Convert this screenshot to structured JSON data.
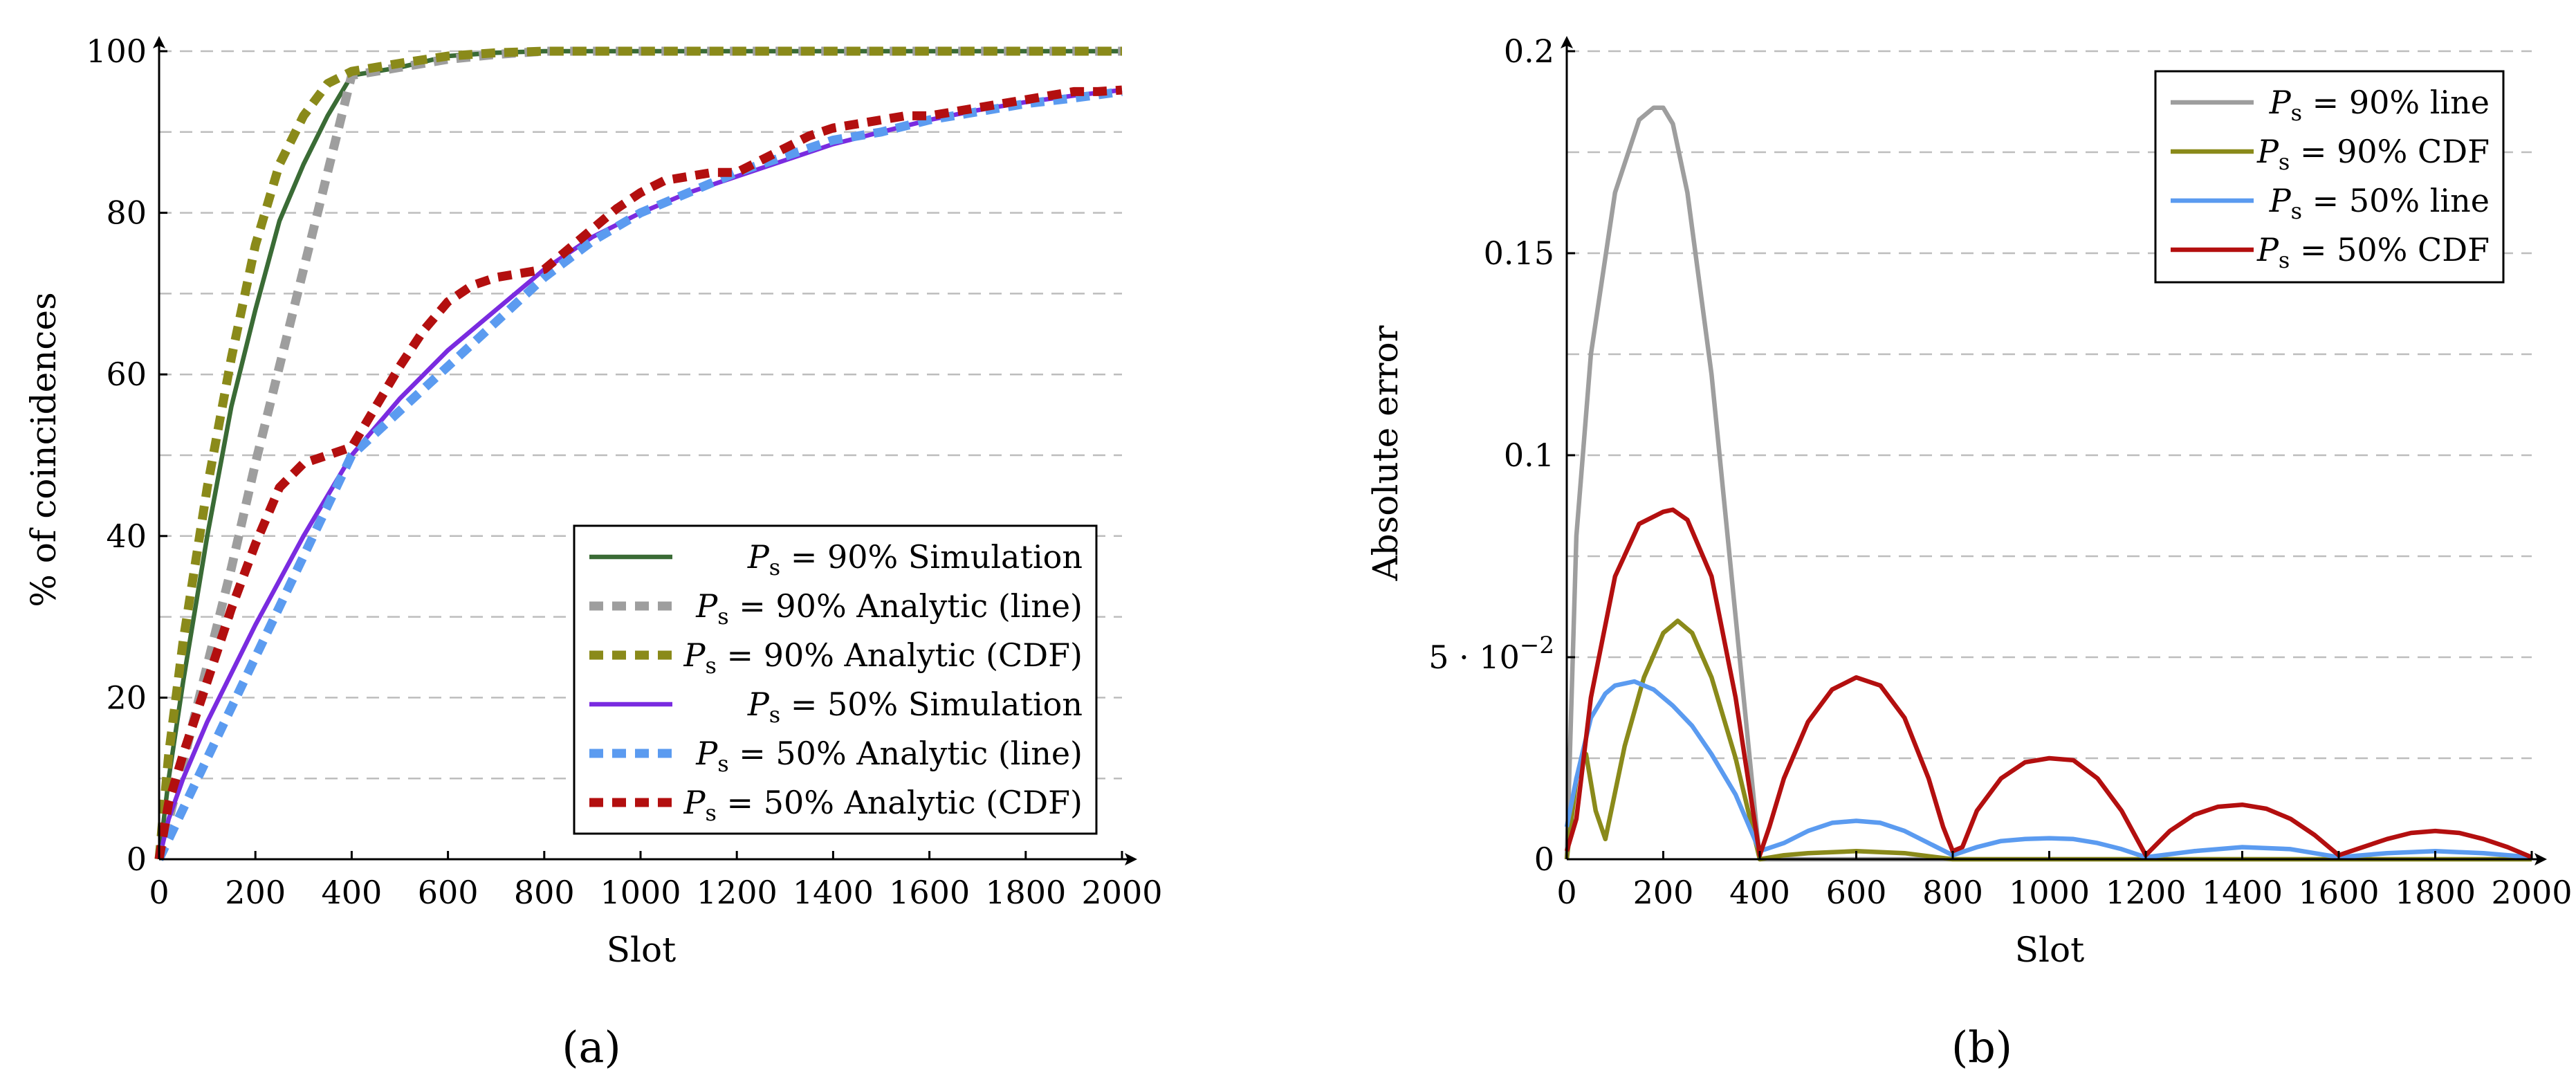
{
  "chart_data": [
    {
      "type": "line",
      "caption": "(a)",
      "xlabel": "Slot",
      "ylabel": "% of coincidences",
      "xlim": [
        0,
        2000
      ],
      "ylim": [
        0,
        100
      ],
      "xticks": [
        "0",
        "200",
        "400",
        "600",
        "800",
        "1000",
        "1200",
        "1400",
        "1600",
        "1800",
        "2000"
      ],
      "yticks": [
        "0",
        "20",
        "40",
        "60",
        "80",
        "100"
      ],
      "grid": "horizontal dashed every 10",
      "legend_position": "lower-right",
      "series": [
        {
          "name": "Ps = 90% Simulation",
          "legend_math": "P",
          "legend_sub": "s",
          "legend_rest": " = 90% Simulation",
          "color": "#3a6b35",
          "dashed": false,
          "x": [
            0,
            20,
            50,
            100,
            150,
            200,
            250,
            300,
            350,
            400,
            500,
            600,
            700,
            800,
            1000,
            1200,
            1400,
            1600,
            1800,
            2000
          ],
          "y": [
            0,
            10,
            22,
            40,
            56,
            68,
            79,
            86,
            92,
            97,
            98,
            99.4,
            99.8,
            100,
            100,
            100,
            100,
            100,
            100,
            100
          ]
        },
        {
          "name": "Ps = 90% Analytic (line)",
          "legend_math": "P",
          "legend_sub": "s",
          "legend_rest": " = 90% Analytic (line)",
          "color": "#9e9e9e",
          "dashed": true,
          "x": [
            0,
            50,
            100,
            150,
            200,
            250,
            300,
            350,
            400,
            500,
            600,
            700,
            800,
            1000,
            1200,
            1400,
            1600,
            1800,
            2000
          ],
          "y": [
            0,
            12,
            24,
            36,
            49,
            61,
            73,
            85,
            97,
            98,
            99,
            99.6,
            100,
            100,
            100,
            100,
            100,
            100,
            100
          ]
        },
        {
          "name": "Ps = 90% Analytic (CDF)",
          "legend_math": "P",
          "legend_sub": "s",
          "legend_rest": " = 90% Analytic (CDF)",
          "color": "#8a8a1a",
          "dashed": true,
          "x": [
            0,
            20,
            50,
            100,
            150,
            200,
            250,
            300,
            350,
            400,
            500,
            600,
            700,
            800,
            1000,
            1200,
            1400,
            1600,
            1800,
            2000
          ],
          "y": [
            0,
            13,
            27,
            46,
            62,
            76,
            86,
            92,
            96,
            97.5,
            98.5,
            99.4,
            99.8,
            100,
            100,
            100,
            100,
            100,
            100,
            100
          ]
        },
        {
          "name": "Ps = 50% Simulation",
          "legend_math": "P",
          "legend_sub": "s",
          "legend_rest": " = 50% Simulation",
          "color": "#7a2be0",
          "dashed": false,
          "x": [
            0,
            20,
            50,
            100,
            200,
            300,
            400,
            500,
            600,
            700,
            800,
            900,
            1000,
            1100,
            1200,
            1300,
            1400,
            1500,
            1600,
            1700,
            1800,
            1900,
            2000
          ],
          "y": [
            0,
            5,
            10,
            17,
            29,
            40,
            50,
            57,
            63,
            68,
            73,
            77,
            80,
            82.5,
            84.5,
            86.5,
            88.5,
            90,
            91.5,
            92.7,
            93.7,
            94.5,
            95.2
          ]
        },
        {
          "name": "Ps = 50% Analytic (line)",
          "legend_math": "P",
          "legend_sub": "s",
          "legend_rest": " = 50% Analytic (line)",
          "color": "#5b9bf0",
          "dashed": true,
          "x": [
            0,
            100,
            200,
            300,
            400,
            500,
            600,
            700,
            800,
            900,
            1000,
            1100,
            1200,
            1300,
            1400,
            1500,
            1600,
            1700,
            1800,
            1900,
            2000
          ],
          "y": [
            0,
            12.5,
            25,
            37.5,
            50,
            55.5,
            61,
            66.5,
            72,
            76.5,
            80,
            82.5,
            85,
            87,
            89,
            90,
            91.5,
            92.5,
            93.5,
            94.2,
            95
          ]
        },
        {
          "name": "Ps = 50% Analytic (CDF)",
          "legend_math": "P",
          "legend_sub": "s",
          "legend_rest": " = 50% Analytic (CDF)",
          "color": "#b30f0f",
          "dashed": true,
          "x": [
            0,
            20,
            50,
            100,
            150,
            200,
            250,
            300,
            350,
            400,
            450,
            500,
            550,
            600,
            650,
            700,
            750,
            800,
            850,
            900,
            950,
            1000,
            1050,
            1100,
            1150,
            1200,
            1250,
            1300,
            1350,
            1400,
            1450,
            1500,
            1550,
            1600,
            1650,
            1700,
            1750,
            1800,
            1850,
            1900,
            1950,
            2000
          ],
          "y": [
            0,
            7,
            13,
            22,
            31,
            39,
            46,
            49,
            50,
            51,
            56,
            61,
            65.5,
            69,
            71,
            72,
            72.5,
            73,
            75.5,
            78,
            80.5,
            82.5,
            84,
            84.5,
            85,
            85,
            86.5,
            88,
            89.5,
            90.5,
            91,
            91.5,
            92,
            92,
            92.5,
            93,
            93.5,
            94,
            94.5,
            95,
            95,
            95.2
          ]
        }
      ]
    },
    {
      "type": "line",
      "caption": "(b)",
      "xlabel": "Slot",
      "ylabel": "Absolute error",
      "xlim": [
        0,
        2000
      ],
      "ylim": [
        0,
        0.2
      ],
      "xticks": [
        "0",
        "200",
        "400",
        "600",
        "800",
        "1000",
        "1200",
        "1400",
        "1600",
        "1800",
        "2000"
      ],
      "ytick_values": [
        0,
        0.05,
        0.1,
        0.15,
        0.2
      ],
      "yticks": [
        "0",
        "5 · 10",
        "0.1",
        "0.15",
        "0.2"
      ],
      "ytick_exponent": "−2",
      "grid": "horizontal dashed every 0.025",
      "legend_position": "top-right",
      "series": [
        {
          "name": "Ps = 90% line",
          "legend_math": "P",
          "legend_sub": "s",
          "legend_rest": " = 90% line",
          "color": "#9e9e9e",
          "x": [
            0,
            20,
            50,
            100,
            150,
            180,
            200,
            220,
            250,
            300,
            350,
            400,
            450,
            500,
            600,
            700,
            800,
            1000,
            1200,
            1400,
            1600,
            1800,
            2000
          ],
          "y": [
            0,
            0.08,
            0.125,
            0.165,
            0.183,
            0.186,
            0.186,
            0.182,
            0.165,
            0.12,
            0.06,
            0.0,
            0.0,
            0.0,
            0.0,
            0.0,
            0.0,
            0.0,
            0.0,
            0.0,
            0.0,
            0.0,
            0.0
          ]
        },
        {
          "name": "Ps = 90% CDF",
          "legend_math": "P",
          "legend_sub": "s",
          "legend_rest": " = 90% CDF",
          "color": "#8a8a1a",
          "x": [
            0,
            20,
            40,
            60,
            80,
            120,
            160,
            200,
            230,
            260,
            300,
            350,
            400,
            450,
            500,
            600,
            700,
            800,
            1000,
            1200,
            1400,
            1600,
            1800,
            2000
          ],
          "y": [
            0,
            0.02,
            0.026,
            0.012,
            0.005,
            0.028,
            0.045,
            0.056,
            0.059,
            0.056,
            0.045,
            0.025,
            0.0,
            0.001,
            0.0015,
            0.002,
            0.0015,
            0.0,
            0.0,
            0.0,
            0.0,
            0.0,
            0.0,
            0.0
          ]
        },
        {
          "name": "Ps = 50% line",
          "legend_math": "P",
          "legend_sub": "s",
          "legend_rest": " = 50% line",
          "color": "#5b9bf0",
          "x": [
            0,
            20,
            50,
            80,
            100,
            140,
            180,
            220,
            260,
            300,
            350,
            400,
            450,
            500,
            550,
            600,
            650,
            700,
            750,
            800,
            850,
            900,
            950,
            1000,
            1050,
            1100,
            1150,
            1200,
            1300,
            1400,
            1500,
            1600,
            1700,
            1800,
            1900,
            2000
          ],
          "y": [
            0.008,
            0.02,
            0.035,
            0.041,
            0.043,
            0.044,
            0.042,
            0.038,
            0.033,
            0.026,
            0.016,
            0.002,
            0.004,
            0.007,
            0.009,
            0.0095,
            0.009,
            0.007,
            0.004,
            0.001,
            0.003,
            0.0045,
            0.005,
            0.0052,
            0.005,
            0.004,
            0.0025,
            0.0005,
            0.002,
            0.003,
            0.0025,
            0.0005,
            0.0015,
            0.002,
            0.0015,
            0.0005
          ]
        },
        {
          "name": "Ps = 50% CDF",
          "legend_math": "P",
          "legend_sub": "s",
          "legend_rest": " = 50% CDF",
          "color": "#b30f0f",
          "x": [
            0,
            20,
            50,
            100,
            150,
            200,
            220,
            250,
            300,
            350,
            400,
            420,
            450,
            500,
            550,
            600,
            650,
            700,
            750,
            780,
            800,
            820,
            850,
            900,
            950,
            1000,
            1050,
            1100,
            1150,
            1200,
            1250,
            1300,
            1350,
            1400,
            1450,
            1500,
            1550,
            1600,
            1650,
            1700,
            1750,
            1800,
            1850,
            1900,
            1950,
            2000
          ],
          "y": [
            0.002,
            0.01,
            0.04,
            0.07,
            0.083,
            0.086,
            0.0865,
            0.084,
            0.07,
            0.04,
            0.001,
            0.008,
            0.02,
            0.034,
            0.042,
            0.045,
            0.043,
            0.035,
            0.02,
            0.008,
            0.002,
            0.003,
            0.012,
            0.02,
            0.024,
            0.025,
            0.0245,
            0.02,
            0.012,
            0.001,
            0.007,
            0.011,
            0.013,
            0.0135,
            0.0125,
            0.01,
            0.006,
            0.001,
            0.003,
            0.005,
            0.0065,
            0.007,
            0.0065,
            0.005,
            0.003,
            0.0005
          ]
        }
      ]
    }
  ]
}
